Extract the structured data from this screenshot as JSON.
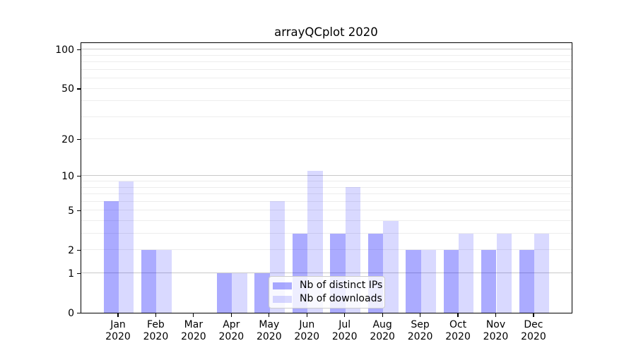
{
  "title": "arrayQCplot 2020",
  "chart_data": {
    "type": "bar",
    "title": "arrayQCplot 2020",
    "categories": [
      "Jan",
      "Feb",
      "Mar",
      "Apr",
      "May",
      "Jun",
      "Jul",
      "Aug",
      "Sep",
      "Oct",
      "Nov",
      "Dec"
    ],
    "year_label": "2020",
    "series": [
      {
        "name": "Nb of distinct IPs",
        "color": "rgba(0,0,255,0.33)",
        "values": [
          6,
          2,
          0,
          1,
          1,
          3,
          3,
          3,
          2,
          2,
          2,
          2
        ]
      },
      {
        "name": "Nb of downloads",
        "color": "rgba(0,0,255,0.15)",
        "values": [
          9,
          2,
          0,
          1,
          6,
          11,
          8,
          4,
          2,
          3,
          3,
          3
        ]
      }
    ],
    "scale": "log1p",
    "ylim": [
      0,
      114.5
    ],
    "yticks": [
      0,
      1,
      2,
      5,
      10,
      20,
      50,
      100
    ],
    "major_gridlines": [
      1,
      10,
      100
    ],
    "minor_gridlines": [
      2,
      3,
      4,
      5,
      6,
      7,
      8,
      9,
      20,
      30,
      40,
      50,
      60,
      70,
      80,
      90
    ],
    "grid": true,
    "legend_position": "lower-center",
    "colors": {
      "grid_major": "#c9c9c9",
      "grid_minor": "#ededed",
      "spine": "#000000",
      "text": "#000000",
      "legend_border": "#cccccc",
      "legend_bg": "rgba(255,255,255,0.8)"
    }
  }
}
